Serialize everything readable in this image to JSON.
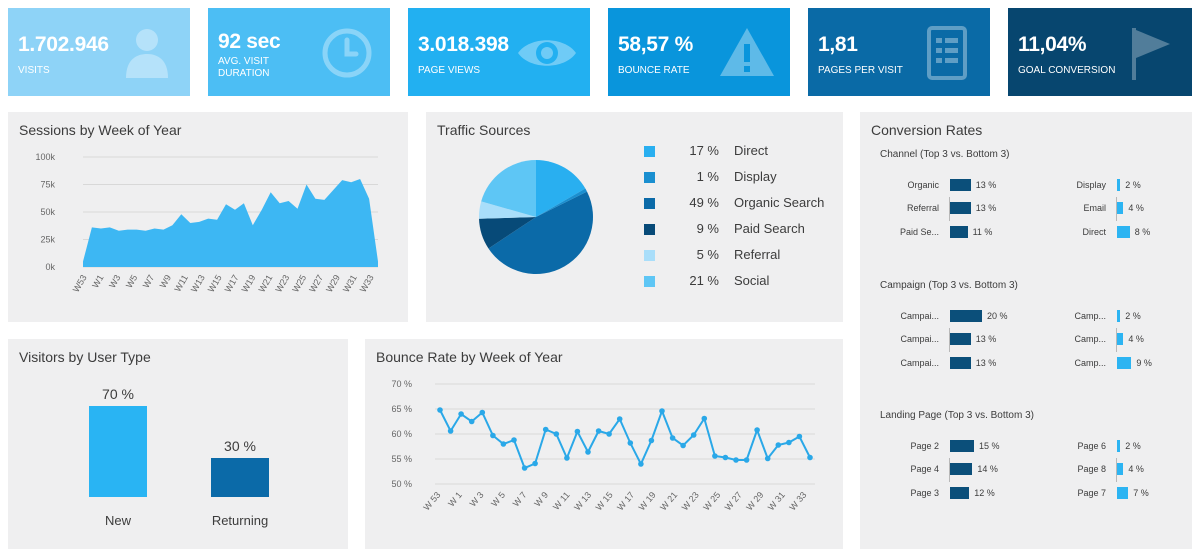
{
  "kpis": [
    {
      "value": "1.702.946",
      "label": "VISITS",
      "color": "#8ed3f7",
      "icon": "user-icon"
    },
    {
      "value": "92 sec",
      "label": "AVG. VISIT DURATION",
      "color": "#4cbef4",
      "icon": "clock-icon"
    },
    {
      "value": "3.018.398",
      "label": "PAGE VIEWS",
      "color": "#22b0f1",
      "icon": "eye-icon"
    },
    {
      "value": "58,57 %",
      "label": "BOUNCE RATE",
      "color": "#0995dc",
      "icon": "warning-icon"
    },
    {
      "value": "1,81",
      "label": "PAGES PER VISIT",
      "color": "#0a6aa6",
      "icon": "document-icon"
    },
    {
      "value": "11,04%",
      "label": "GOAL CONVERSION",
      "color": "#07466f",
      "icon": "flag-icon"
    }
  ],
  "sessions": {
    "title": "Sessions by Week of Year",
    "chart_data": {
      "type": "area",
      "color": "#3db7f3",
      "y_ticks": [
        "100k",
        "75k",
        "50k",
        "25k",
        "0k"
      ],
      "ylim": [
        0,
        100000
      ],
      "x_labels": [
        "W53",
        "W1",
        "W3",
        "W5",
        "W7",
        "W9",
        "W11",
        "W13",
        "W15",
        "W17",
        "W19",
        "W21",
        "W23",
        "W25",
        "W27",
        "W29",
        "W31",
        "W33"
      ],
      "values": [
        5000,
        36000,
        35000,
        36000,
        33000,
        34000,
        34000,
        33000,
        35000,
        34000,
        38000,
        48000,
        40000,
        41000,
        44000,
        43000,
        57000,
        52000,
        58000,
        38000,
        52000,
        68000,
        58000,
        60000,
        53000,
        75000,
        62000,
        61000,
        70000,
        79000,
        77000,
        80000,
        62000,
        5000
      ]
    }
  },
  "traffic": {
    "title": "Traffic Sources",
    "chart_data": {
      "type": "pie",
      "slices": [
        {
          "name": "Direct",
          "pct_label": "17 %",
          "value": 17,
          "color": "#29aff0"
        },
        {
          "name": "Display",
          "pct_label": "1 %",
          "value": 1,
          "color": "#1a8fd0"
        },
        {
          "name": "Organic Search",
          "pct_label": "49 %",
          "value": 49,
          "color": "#0b6aa8"
        },
        {
          "name": "Paid Search",
          "pct_label": "9 %",
          "value": 9,
          "color": "#074a78"
        },
        {
          "name": "Referral",
          "pct_label": "5 %",
          "value": 5,
          "color": "#a9defa"
        },
        {
          "name": "Social",
          "pct_label": "21 %",
          "value": 21,
          "color": "#5ec6f5"
        }
      ]
    }
  },
  "visitors": {
    "title": "Visitors by User Type",
    "chart_data": {
      "type": "bar",
      "categories": [
        "New",
        "Returning"
      ],
      "values": [
        70,
        30
      ],
      "value_labels": [
        "70 %",
        "30 %"
      ],
      "colors": [
        "#29b4f3",
        "#0b6aa8"
      ],
      "ylim": [
        0,
        70
      ]
    }
  },
  "bounce": {
    "title": "Bounce Rate by Week of Year",
    "chart_data": {
      "type": "line",
      "color": "#2aa8e8",
      "y_ticks": [
        "70 %",
        "65 %",
        "60 %",
        "55 %",
        "50 %"
      ],
      "ylim": [
        50,
        70
      ],
      "x_labels": [
        "W 53",
        "W 1",
        "W 3",
        "W 5",
        "W 7",
        "W 9",
        "W 11",
        "W 13",
        "W 15",
        "W 17",
        "W 19",
        "W 21",
        "W 23",
        "W 25",
        "W 27",
        "W 29",
        "W 31",
        "W 33"
      ],
      "values": [
        64.8,
        60.6,
        64.0,
        62.5,
        64.3,
        59.7,
        58.0,
        58.8,
        53.2,
        54.1,
        60.9,
        60.0,
        55.2,
        60.5,
        56.4,
        60.6,
        60.0,
        63.0,
        58.2,
        54.0,
        58.7,
        64.6,
        59.2,
        57.7,
        59.8,
        63.1,
        55.6,
        55.3,
        54.8,
        54.8,
        60.8,
        55.1,
        57.8,
        58.3,
        59.5,
        55.3
      ]
    }
  },
  "conversion": {
    "title": "Conversion Rates",
    "sections": [
      {
        "title": "Channel  (Top 3 vs. Bottom 3)",
        "top": [
          {
            "label": "Organic",
            "value": 13,
            "value_label": "13 %"
          },
          {
            "label": "Referral",
            "value": 13,
            "value_label": "13 %"
          },
          {
            "label": "Paid Se...",
            "value": 11,
            "value_label": "11 %"
          }
        ],
        "bottom": [
          {
            "label": "Display",
            "value": 2,
            "value_label": "2 %"
          },
          {
            "label": "Email",
            "value": 4,
            "value_label": "4 %"
          },
          {
            "label": "Direct",
            "value": 8,
            "value_label": "8 %"
          }
        ]
      },
      {
        "title": "Campaign (Top 3 vs. Bottom 3)",
        "top": [
          {
            "label": "Campai...",
            "value": 20,
            "value_label": "20 %"
          },
          {
            "label": "Campai...",
            "value": 13,
            "value_label": "13 %"
          },
          {
            "label": "Campai...",
            "value": 13,
            "value_label": "13 %"
          }
        ],
        "bottom": [
          {
            "label": "Camp...",
            "value": 2,
            "value_label": "2 %"
          },
          {
            "label": "Camp...",
            "value": 4,
            "value_label": "4 %"
          },
          {
            "label": "Camp...",
            "value": 9,
            "value_label": "9 %"
          }
        ]
      },
      {
        "title": "Landing Page (Top 3 vs. Bottom 3)",
        "top": [
          {
            "label": "Page 2",
            "value": 15,
            "value_label": "15 %"
          },
          {
            "label": "Page 4",
            "value": 14,
            "value_label": "14 %"
          },
          {
            "label": "Page 3",
            "value": 12,
            "value_label": "12 %"
          }
        ],
        "bottom": [
          {
            "label": "Page 6",
            "value": 2,
            "value_label": "2 %"
          },
          {
            "label": "Page 8",
            "value": 4,
            "value_label": "4 %"
          },
          {
            "label": "Page 7",
            "value": 7,
            "value_label": "7 %"
          }
        ]
      }
    ],
    "colors": {
      "top": "#0b4f7a",
      "bottom": "#2cb4f2"
    }
  }
}
